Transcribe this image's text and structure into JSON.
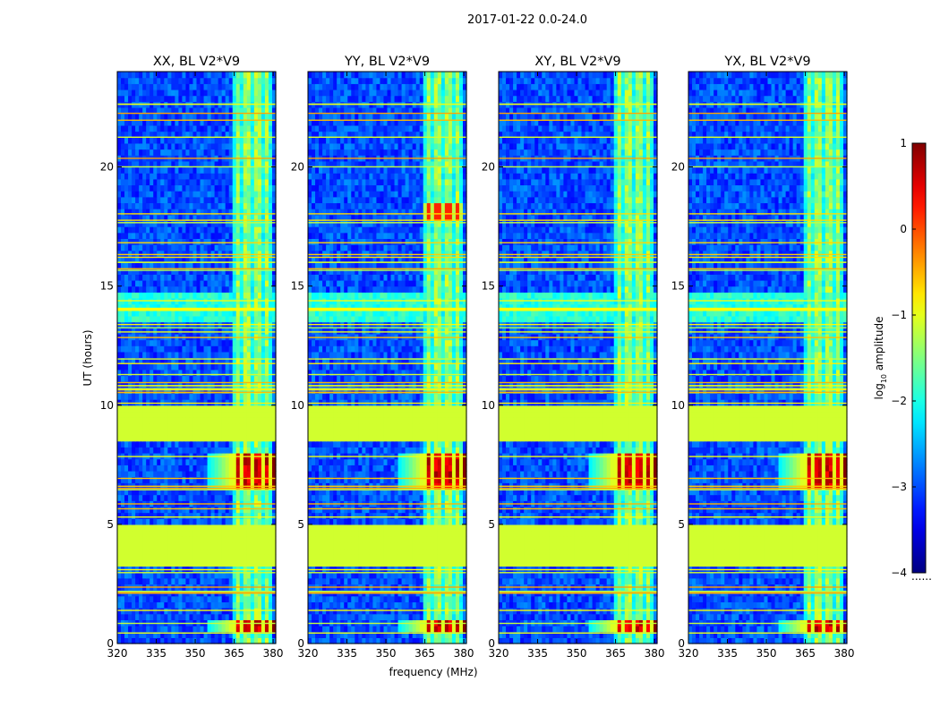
{
  "chart_data": {
    "type": "heatmap",
    "suptitle": "2017-01-22 0.0-24.0",
    "panels": [
      {
        "title": "XX, BL V2*V9",
        "corr": "XX"
      },
      {
        "title": "YY, BL V2*V9",
        "corr": "YY"
      },
      {
        "title": "XY, BL V2*V9",
        "corr": "XY"
      },
      {
        "title": "YX, BL V2*V9",
        "corr": "YX"
      }
    ],
    "xlabel": "frequency (MHz)",
    "ylabel": "UT (hours)",
    "xlim": [
      320,
      381
    ],
    "ylim": [
      0,
      24
    ],
    "xticks": [
      320,
      335,
      350,
      365,
      380
    ],
    "xtick_labels": [
      "320",
      "335",
      "350",
      "365",
      "380"
    ],
    "yticks": [
      0,
      5,
      10,
      15,
      20
    ],
    "ytick_labels": [
      "0",
      "5",
      "10",
      "15",
      "20"
    ],
    "colorbar": {
      "label_base": "log",
      "label_sub": "10",
      "label_rest": " amplitude",
      "range": [
        -4,
        1
      ],
      "ticks": [
        1,
        0,
        -1,
        -2,
        -3,
        -4
      ],
      "tick_labels": [
        "1",
        "0",
        "−1",
        "−2",
        "−3",
        "−4"
      ],
      "colormap": "jet",
      "under_label": "......"
    },
    "features": {
      "background_level": -3.0,
      "rfi_band_mhz": [
        364,
        380
      ],
      "rfi_channels_mhz": [
        364,
        368,
        372,
        376,
        380
      ],
      "flagged_ut_ranges": [
        [
          3.2,
          5.1
        ],
        [
          8.5,
          9.9
        ]
      ],
      "flagged_level": -1.1,
      "strong_rfi_ut_ranges": [
        [
          0.6,
          1.1
        ],
        [
          6.5,
          8.0
        ]
      ],
      "strong_rfi_level": 0.9
    }
  }
}
